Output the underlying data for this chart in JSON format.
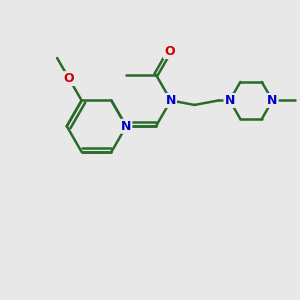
{
  "background_color": "#e8e8e8",
  "bond_color": "#2a6a2a",
  "bond_width": 1.8,
  "atom_colors": {
    "N": "#0000cc",
    "O": "#cc0000",
    "C": "#2a6a2a"
  },
  "font_size": 9,
  "fig_size": [
    3.0,
    3.0
  ],
  "dpi": 100,
  "xlim": [
    0,
    10
  ],
  "ylim": [
    0,
    10
  ]
}
